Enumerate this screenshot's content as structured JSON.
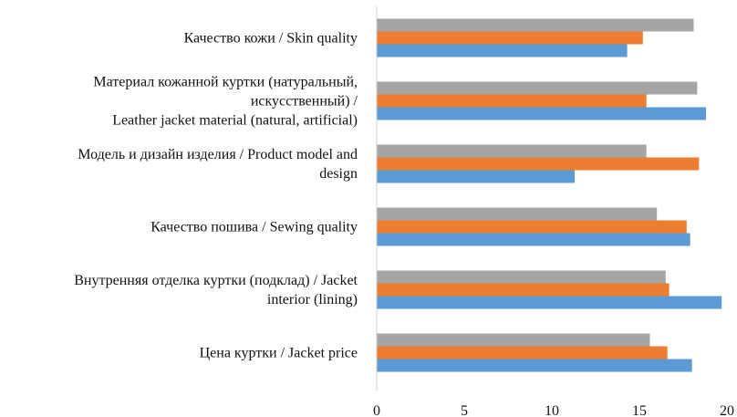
{
  "chart_data": {
    "type": "bar",
    "orientation": "horizontal",
    "categories": [
      [
        "Качество кожи / Skin quality"
      ],
      [
        "Материал кожанной куртки (натуральный,",
        "искусственный)  /",
        "Leather jacket material (natural, artificial)"
      ],
      [
        "Модель и дизайн изделия / Product model and",
        "design"
      ],
      [
        "Качество пошива / Sewing quality"
      ],
      [
        "Внутренняя  отделка куртки (подклад) / Jacket",
        "interior (lining)"
      ],
      [
        "Цена куртки  / Jacket price"
      ]
    ],
    "series": [
      {
        "color": "#a5a5a5",
        "values": [
          18.1,
          18.3,
          15.4,
          16.0,
          16.5,
          15.6
        ]
      },
      {
        "color": "#ed7d31",
        "values": [
          15.2,
          15.4,
          18.4,
          17.7,
          16.7,
          16.6
        ]
      },
      {
        "color": "#5b9bd5",
        "values": [
          14.3,
          18.8,
          11.3,
          17.9,
          19.7,
          18.0
        ]
      }
    ],
    "xlim": [
      0,
      20
    ],
    "xticks": [
      0,
      5,
      10,
      15,
      20
    ],
    "grid": false,
    "legend": "none",
    "title": "",
    "xlabel": "",
    "ylabel": ""
  }
}
